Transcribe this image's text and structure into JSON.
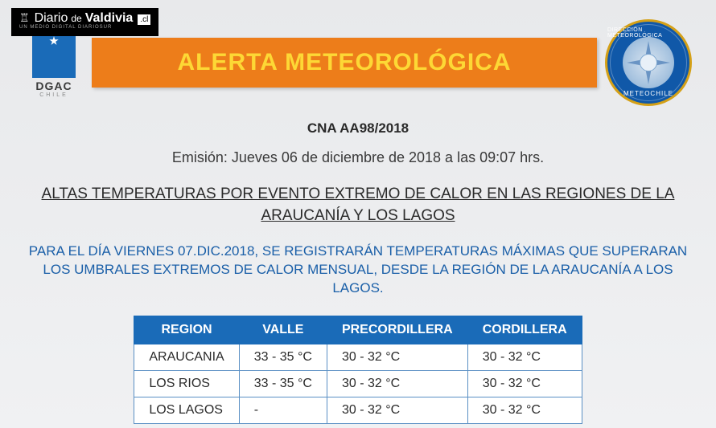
{
  "watermark": {
    "diario": "Diario",
    "de": "de",
    "valdivia": "Valdivia",
    "cl": ".cl",
    "sub": "UN MEDIO DIGITAL DIARIOSUR"
  },
  "logos": {
    "dgac": "DGAC",
    "dgac_sub": "CHILE",
    "meteo_top": "DIRECCIÓN METEOROLÓGICA",
    "meteo_bot": "METEOCHILE"
  },
  "banner": {
    "text": "ALERTA METEOROLÓGICA",
    "bg_color": "#ed7d1a",
    "text_color": "#fdd835"
  },
  "code": "CNA AA98/2018",
  "emission": "Emisión: Jueves 06 de diciembre de 2018 a las 09:07 hrs.",
  "title": "ALTAS TEMPERATURAS POR EVENTO EXTREMO DE CALOR EN LAS REGIONES DE LA ARAUCANÍA Y LOS LAGOS",
  "body": "PARA EL DÍA VIERNES 07.DIC.2018, SE REGISTRARÁN TEMPERATURAS MÁXIMAS QUE SUPERARAN LOS UMBRALES EXTREMOS DE CALOR MENSUAL, DESDE LA REGIÓN DE LA ARAUCANÍA A LOS LAGOS.",
  "table": {
    "header_bg": "#1a6bb8",
    "header_color": "#ffffff",
    "border_color": "#5a8fc4",
    "columns": [
      "REGION",
      "VALLE",
      "PRECORDILLERA",
      "CORDILLERA"
    ],
    "rows": [
      [
        "ARAUCANIA",
        "33 - 35 °C",
        "30 - 32 °C",
        "30 - 32 °C"
      ],
      [
        "LOS RIOS",
        "33 - 35 °C",
        "30 - 32 °C",
        "30 - 32 °C"
      ],
      [
        "LOS LAGOS",
        "-",
        "30 - 32 °C",
        "30 - 32 °C"
      ]
    ]
  },
  "colors": {
    "page_bg": "#f0f1f3",
    "blue": "#1a6bb8",
    "body_text": "#1a5fa8",
    "dark_text": "#2a2a2a"
  }
}
